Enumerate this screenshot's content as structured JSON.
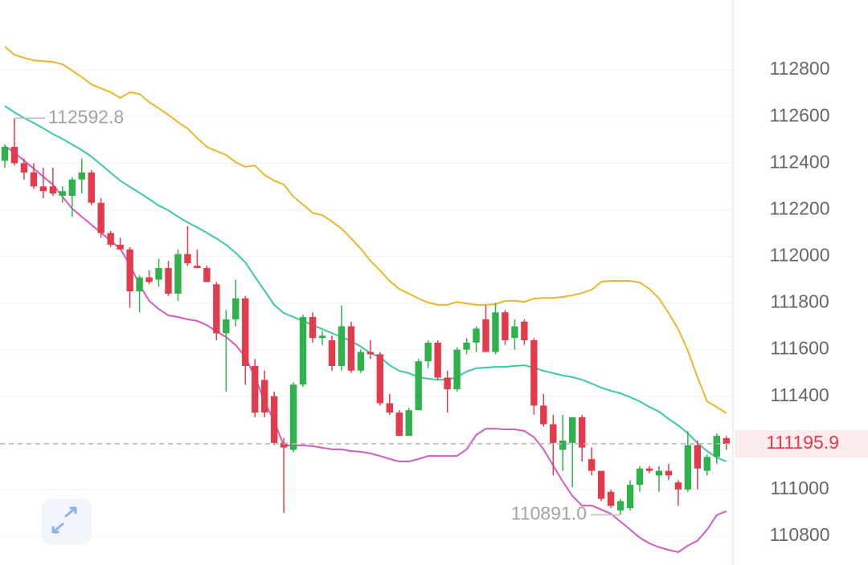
{
  "chart_data": {
    "type": "candlestick",
    "open": [
      112410,
      112470,
      112400,
      112360,
      112300,
      112300,
      112260,
      112260,
      112330,
      112360,
      112230,
      112100,
      112050,
      112030,
      111850,
      111910,
      111900,
      111950,
      111840,
      112010,
      111960,
      111950,
      111880,
      111670,
      111730,
      111820,
      111530,
      111470,
      111400,
      111200,
      111170,
      111450,
      111740,
      111650,
      111640,
      111530,
      111700,
      111510,
      111590,
      111580,
      111370,
      111330,
      111230,
      111340,
      111550,
      111630,
      111480,
      111430,
      111600,
      111630,
      111730,
      111590,
      111760,
      111650,
      111720,
      111640,
      111360,
      111280,
      111170,
      111200,
      111310,
      111130,
      111080,
      110990,
      110910,
      110920,
      111020,
      111090,
      111060,
      111080,
      111030,
      111000,
      111190,
      111080,
      111140,
      111220
    ],
    "high": [
      112480,
      112592.8,
      112420,
      112400,
      112380,
      112380,
      112300,
      112340,
      112420,
      112370,
      112250,
      112110,
      112080,
      112040,
      111920,
      111940,
      111990,
      111980,
      112030,
      112130,
      112030,
      111960,
      111890,
      111770,
      111900,
      111830,
      111560,
      111510,
      111420,
      111220,
      111460,
      111750,
      111760,
      111680,
      111660,
      111790,
      111720,
      111600,
      111640,
      111590,
      111410,
      111340,
      111350,
      111560,
      111640,
      111640,
      111510,
      111610,
      111650,
      111700,
      111790,
      111800,
      111770,
      111730,
      111730,
      111650,
      111410,
      111320,
      111320,
      111310,
      111320,
      111180,
      111080,
      111000,
      110960,
      111040,
      111100,
      111100,
      111100,
      111110,
      111040,
      111250,
      111210,
      111150,
      111240,
      111230
    ],
    "low": [
      112380,
      112390,
      112330,
      112290,
      112250,
      112260,
      112230,
      112170,
      112270,
      112220,
      112080,
      112040,
      112030,
      111780,
      111760,
      111880,
      111870,
      111830,
      111810,
      111960,
      111950,
      111890,
      111640,
      111420,
      111700,
      111450,
      111310,
      111310,
      111190,
      110900,
      111160,
      111440,
      111630,
      111620,
      111510,
      111510,
      111500,
      111500,
      111560,
      111360,
      111320,
      111230,
      111230,
      111340,
      111520,
      111470,
      111330,
      111420,
      111580,
      111590,
      111590,
      111580,
      111620,
      111600,
      111620,
      111320,
      111270,
      111060,
      111080,
      111010,
      111120,
      111060,
      110950,
      110920,
      110891,
      110910,
      110990,
      111070,
      110990,
      111040,
      110930,
      110990,
      111000,
      111060,
      111110,
      111170
    ],
    "close": [
      112470,
      112400,
      112360,
      112300,
      112280,
      112270,
      112280,
      112330,
      112360,
      112230,
      112100,
      112050,
      112030,
      111850,
      111910,
      111890,
      111950,
      111840,
      112010,
      111970,
      111950,
      111890,
      111670,
      111730,
      111820,
      111530,
      111330,
      111330,
      111200,
      111180,
      111450,
      111740,
      111650,
      111660,
      111530,
      111700,
      111510,
      111590,
      111580,
      111370,
      111330,
      111230,
      111340,
      111550,
      111630,
      111480,
      111430,
      111600,
      111630,
      111690,
      111590,
      111760,
      111640,
      111700,
      111640,
      111360,
      111280,
      111200,
      111210,
      111310,
      111180,
      111080,
      110960,
      110930,
      110950,
      111020,
      111090,
      111080,
      111080,
      111060,
      111000,
      111190,
      111090,
      111140,
      111230,
      111195.9
    ],
    "upper": [
      112900,
      112865,
      112852,
      112841,
      112838,
      112834,
      112824,
      112797,
      112769,
      112738,
      112721,
      112704,
      112680,
      112704,
      112697,
      112662,
      112635,
      112607,
      112576,
      112549,
      112507,
      112470,
      112452,
      112435,
      112404,
      112384,
      112390,
      112349,
      112325,
      112308,
      112256,
      112222,
      112187,
      112177,
      112150,
      112119,
      112077,
      112033,
      111981,
      111940,
      111895,
      111860,
      111840,
      111819,
      111802,
      111792,
      111792,
      111805,
      111798,
      111792,
      111792,
      111795,
      111809,
      111809,
      111805,
      111819,
      111822,
      111822,
      111826,
      111833,
      111843,
      111857,
      111891,
      111895,
      111895,
      111895,
      111888,
      111860,
      111819,
      111757,
      111688,
      111595,
      111482,
      111378,
      111354,
      111327
    ],
    "middle": [
      112645,
      112618,
      112594,
      112573,
      112549,
      112525,
      112504,
      112480,
      112456,
      112428,
      112394,
      112359,
      112325,
      112298,
      112273,
      112246,
      112218,
      112198,
      112170,
      112146,
      112125,
      112101,
      112077,
      112050,
      112015,
      111974,
      111912,
      111853,
      111792,
      111757,
      111740,
      111723,
      111705,
      111688,
      111671,
      111654,
      111637,
      111613,
      111585,
      111568,
      111533,
      111509,
      111499,
      111482,
      111475,
      111471,
      111471,
      111482,
      111506,
      111520,
      111523,
      111526,
      111526,
      111530,
      111533,
      111523,
      111509,
      111499,
      111489,
      111482,
      111471,
      111454,
      111437,
      111423,
      111413,
      111396,
      111378,
      111354,
      111334,
      111303,
      111275,
      111241,
      111199,
      111165,
      111137,
      111120
    ],
    "lower": [
      112473,
      112446,
      112411,
      112377,
      112342,
      112308,
      112256,
      112205,
      112170,
      112136,
      112101,
      112067,
      112033,
      111964,
      111878,
      111809,
      111774,
      111747,
      111740,
      111730,
      111723,
      111705,
      111678,
      111654,
      111619,
      111568,
      111482,
      111378,
      111292,
      111189,
      111189,
      111189,
      111186,
      111179,
      111172,
      111172,
      111165,
      111162,
      111155,
      111144,
      111131,
      111120,
      111120,
      111131,
      111144,
      111144,
      111144,
      111144,
      111172,
      111234,
      111261,
      111261,
      111258,
      111258,
      111251,
      111224,
      111172,
      111103,
      111034,
      110972,
      110931,
      110931,
      110914,
      110896,
      110862,
      110828,
      110793,
      110769,
      110752,
      110741,
      110731,
      110759,
      110780,
      110828,
      110890,
      110907
    ],
    "up_color": "#2fb24c",
    "down_color": "#e23b4b",
    "upper_color": "#e8b82c",
    "middle_color": "#3cc9a5",
    "lower_color": "#d85ac0",
    "ylim": [
      110676,
      113100
    ],
    "yticks": [
      110800,
      111000,
      111200,
      111400,
      111600,
      111800,
      112000,
      112200,
      112400,
      112600,
      112800
    ],
    "grid": true,
    "max_label": 112592.8,
    "min_label": {
      "value": 110891,
      "label": "110891.0"
    },
    "last_price": 111195.9
  }
}
